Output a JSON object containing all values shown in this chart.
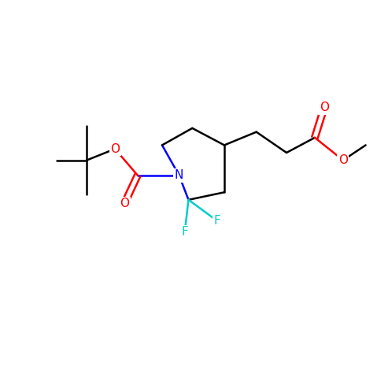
{
  "bg_color": "#ffffff",
  "bond_color": "#000000",
  "n_color": "#0000ff",
  "o_color": "#ff0000",
  "f_color": "#00cccc",
  "line_width": 1.8,
  "font_size": 11,
  "figsize": [
    4.79,
    4.79
  ],
  "dpi": 100,
  "xlim": [
    0,
    10
  ],
  "ylim": [
    0,
    10
  ]
}
